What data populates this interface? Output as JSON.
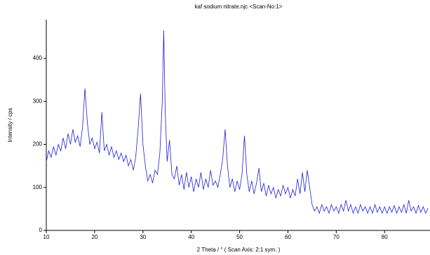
{
  "chart_data": {
    "type": "line",
    "title": "kaf sodium nitrate.njc <Scan-No:1>",
    "x_label": "2 Theta / °   ( Scan Axis: 2:1 sym. )",
    "y_label": "Intensity / cps",
    "color": "#1f1fd6",
    "xlim": [
      10,
      89.4
    ],
    "xticks": [
      10,
      20,
      30,
      40,
      50,
      60,
      70,
      80
    ],
    "ylim": [
      0,
      490
    ],
    "yticks": [
      0,
      100,
      200,
      300,
      400
    ],
    "x": [
      10,
      10.5,
      11,
      11.5,
      12,
      12.5,
      13,
      13.5,
      14,
      14.5,
      15,
      15.5,
      16,
      16.5,
      17,
      17.5,
      18,
      18.5,
      19,
      19.5,
      20,
      20.5,
      21,
      21.5,
      22,
      22.5,
      23,
      23.5,
      24,
      24.5,
      25,
      25.5,
      26,
      26.5,
      27,
      27.5,
      28,
      28.5,
      29,
      29.5,
      30,
      30.5,
      31,
      31.5,
      32,
      32.5,
      33,
      33.5,
      34,
      34.3,
      34.6,
      35,
      35.5,
      36,
      36.5,
      37,
      37.5,
      38,
      38.5,
      39,
      39.5,
      40,
      40.5,
      41,
      41.5,
      42,
      42.5,
      43,
      43.5,
      44,
      44.5,
      45,
      45.5,
      46,
      46.5,
      47,
      47.5,
      48,
      48.5,
      49,
      49.5,
      50,
      50.5,
      51,
      51.5,
      52,
      52.5,
      53,
      53.5,
      54,
      54.5,
      55,
      55.5,
      56,
      56.5,
      57,
      57.5,
      58,
      58.5,
      59,
      59.5,
      60,
      60.5,
      61,
      61.5,
      62,
      62.5,
      63,
      63.5,
      64,
      64.5,
      65,
      65.5,
      66,
      66.5,
      67,
      67.5,
      68,
      68.5,
      69,
      69.5,
      70,
      70.5,
      71,
      71.5,
      72,
      72.5,
      73,
      73.5,
      74,
      74.5,
      75,
      75.5,
      76,
      76.5,
      77,
      77.5,
      78,
      78.5,
      79,
      79.5,
      80,
      80.5,
      81,
      81.5,
      82,
      82.5,
      83,
      83.5,
      84,
      84.5,
      85,
      85.5,
      86,
      86.5,
      87,
      87.5,
      88,
      88.5,
      89
    ],
    "values": [
      160,
      185,
      170,
      195,
      175,
      200,
      185,
      215,
      190,
      225,
      200,
      235,
      205,
      220,
      195,
      240,
      330,
      250,
      200,
      215,
      190,
      205,
      180,
      275,
      185,
      200,
      175,
      195,
      170,
      185,
      165,
      180,
      160,
      175,
      150,
      165,
      140,
      170,
      235,
      318,
      200,
      150,
      115,
      130,
      110,
      140,
      130,
      180,
      300,
      465,
      280,
      160,
      210,
      130,
      120,
      150,
      105,
      130,
      95,
      135,
      100,
      125,
      90,
      120,
      100,
      135,
      95,
      120,
      100,
      140,
      105,
      115,
      100,
      130,
      165,
      235,
      150,
      100,
      120,
      90,
      115,
      95,
      130,
      220,
      130,
      90,
      115,
      85,
      110,
      145,
      90,
      110,
      80,
      105,
      85,
      100,
      75,
      95,
      80,
      105,
      85,
      100,
      75,
      95,
      80,
      120,
      85,
      135,
      90,
      140,
      100,
      60,
      45,
      55,
      40,
      60,
      45,
      55,
      40,
      60,
      45,
      55,
      40,
      60,
      45,
      70,
      45,
      60,
      40,
      55,
      40,
      60,
      45,
      55,
      40,
      55,
      40,
      60,
      42,
      55,
      40,
      55,
      40,
      55,
      42,
      58,
      40,
      55,
      42,
      60,
      40,
      70,
      45,
      55,
      40,
      58,
      42,
      55,
      40,
      52
    ]
  }
}
